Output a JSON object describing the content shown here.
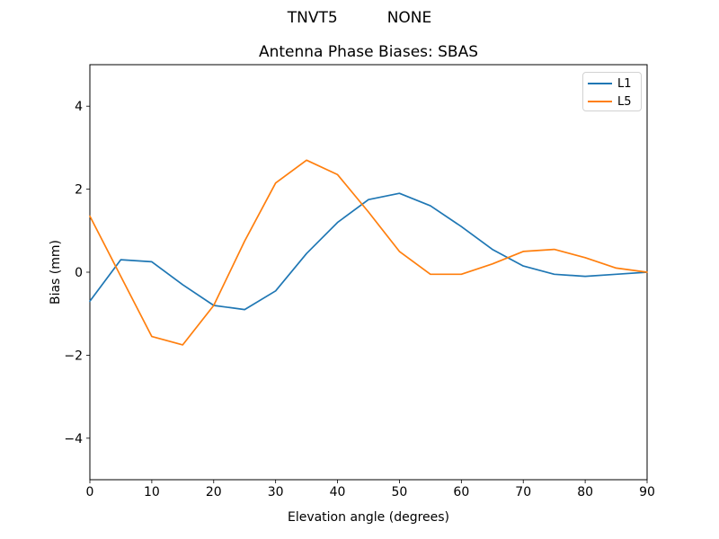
{
  "suptitle": {
    "left_text": "TNVT5",
    "right_text": "NONE"
  },
  "chart_data": {
    "type": "line",
    "title": "Antenna Phase Biases: SBAS",
    "xlabel": "Elevation angle (degrees)",
    "ylabel": "Bias (mm)",
    "xlim": [
      0,
      90
    ],
    "ylim": [
      -5,
      5
    ],
    "grid": false,
    "legend_position": "upper right",
    "xticks": [
      0,
      10,
      20,
      30,
      40,
      50,
      60,
      70,
      80,
      90
    ],
    "xtick_labels": [
      "0",
      "10",
      "20",
      "30",
      "40",
      "50",
      "60",
      "70",
      "80",
      "90"
    ],
    "yticks": [
      -4,
      -2,
      0,
      2,
      4
    ],
    "ytick_labels": [
      "−4",
      "−2",
      "0",
      "2",
      "4"
    ],
    "x": [
      0,
      5,
      10,
      15,
      20,
      25,
      30,
      35,
      40,
      45,
      50,
      55,
      60,
      65,
      70,
      75,
      80,
      85,
      90
    ],
    "series": [
      {
        "name": "L1",
        "color": "#1f77b4",
        "values": [
          -0.7,
          0.3,
          0.25,
          -0.3,
          -0.8,
          -0.9,
          -0.45,
          0.45,
          1.2,
          1.75,
          1.9,
          1.6,
          1.1,
          0.55,
          0.15,
          -0.05,
          -0.1,
          -0.05,
          0.0
        ]
      },
      {
        "name": "L5",
        "color": "#ff7f0e",
        "values": [
          1.35,
          -0.1,
          -1.55,
          -1.75,
          -0.8,
          0.75,
          2.15,
          2.7,
          2.35,
          1.45,
          0.5,
          -0.05,
          -0.05,
          0.2,
          0.5,
          0.55,
          0.35,
          0.1,
          0.0
        ]
      }
    ]
  }
}
